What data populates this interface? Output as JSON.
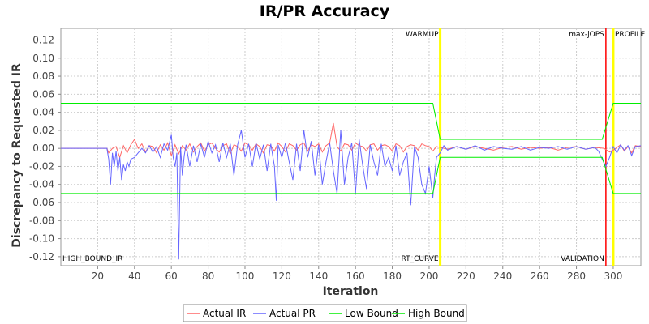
{
  "chart_data": {
    "type": "line",
    "title": "IR/PR Accuracy",
    "xlabel": "Iteration",
    "ylabel": "Discrepancy to Requested IR",
    "xlim": [
      0,
      315
    ],
    "ylim": [
      -0.13,
      0.133
    ],
    "x_ticks": [
      20,
      40,
      60,
      80,
      100,
      120,
      140,
      160,
      180,
      200,
      220,
      240,
      260,
      280,
      300
    ],
    "x_tick_labels": [
      "20",
      "40",
      "60",
      "80",
      "100",
      "120",
      "140",
      "160",
      "180",
      "200",
      "220",
      "240",
      "260",
      "280",
      "300"
    ],
    "y_ticks": [
      0.12,
      0.1,
      0.08,
      0.06,
      0.04,
      0.02,
      0.0,
      -0.02,
      -0.04,
      -0.06,
      -0.08,
      -0.1,
      -0.12
    ],
    "y_tick_labels": [
      "0.12",
      "0.10",
      "0.08",
      "0.06",
      "0.04",
      "0.02",
      "0.00",
      "-0.02",
      "-0.04",
      "-0.06",
      "-0.08",
      "-0.10",
      "-0.12"
    ],
    "grid": true,
    "legend_position": "bottom",
    "markers": [
      {
        "label": "WARMUP",
        "x": 206,
        "color": "#ffff00",
        "label_position": "top"
      },
      {
        "label": "RT_CURVE",
        "x": 206,
        "color": "#ffff00",
        "label_position": "bottom"
      },
      {
        "label": "max-jOPS",
        "x": 296,
        "color": "#ff0000",
        "label_position": "top"
      },
      {
        "label": "VALIDATION",
        "x": 296,
        "color": "#ff0000",
        "label_position": "bottom"
      },
      {
        "label": "PROFILE",
        "x": 300,
        "color": "#ffff00",
        "label_position": "top"
      },
      {
        "label": "HIGH_BOUND_IR",
        "x": 0,
        "color": "#ffff00",
        "label_position": "bottom"
      }
    ],
    "series": [
      {
        "name": "Actual IR",
        "color": "#ff6666",
        "x": [
          0,
          25,
          26,
          28,
          30,
          32,
          34,
          36,
          38,
          40,
          42,
          44,
          46,
          48,
          50,
          52,
          54,
          56,
          58,
          60,
          62,
          64,
          66,
          68,
          70,
          72,
          74,
          76,
          78,
          80,
          82,
          84,
          86,
          88,
          90,
          92,
          94,
          96,
          98,
          100,
          102,
          104,
          106,
          108,
          110,
          112,
          114,
          116,
          118,
          120,
          122,
          124,
          126,
          128,
          130,
          132,
          134,
          136,
          138,
          140,
          142,
          144,
          146,
          148,
          150,
          152,
          154,
          156,
          158,
          160,
          162,
          164,
          166,
          168,
          170,
          172,
          174,
          176,
          178,
          180,
          182,
          184,
          186,
          188,
          190,
          192,
          194,
          196,
          198,
          200,
          202,
          204,
          206,
          208,
          210,
          215,
          220,
          225,
          230,
          235,
          240,
          245,
          250,
          255,
          260,
          265,
          270,
          275,
          280,
          285,
          290,
          295,
          298,
          300,
          302,
          304,
          306,
          308,
          310,
          312,
          315
        ],
        "y": [
          0,
          0,
          -0.005,
          0,
          0.002,
          -0.01,
          0.003,
          -0.005,
          0.004,
          0.01,
          0.0,
          0.005,
          -0.004,
          0.003,
          0.002,
          -0.005,
          0.004,
          -0.002,
          0.006,
          -0.008,
          0.004,
          -0.006,
          0.003,
          -0.002,
          0.005,
          -0.004,
          0.002,
          0.006,
          -0.003,
          0.004,
          0.006,
          0.0,
          -0.004,
          0.003,
          0.005,
          -0.006,
          0.004,
          0.002,
          -0.003,
          0.006,
          0.004,
          -0.002,
          0.005,
          0.002,
          -0.005,
          0.004,
          0.003,
          -0.003,
          0.006,
          0.002,
          -0.004,
          0.005,
          0.003,
          -0.002,
          0.004,
          0.006,
          -0.003,
          0.004,
          0.002,
          0.005,
          -0.004,
          0.003,
          0.006,
          0.028,
          0.002,
          -0.003,
          0.005,
          0.004,
          -0.002,
          0.006,
          0.003,
          0.002,
          -0.003,
          0.004,
          0.005,
          -0.002,
          0.003,
          0.004,
          0.002,
          -0.003,
          0.005,
          0.003,
          -0.004,
          0.002,
          0.004,
          0.003,
          -0.002,
          0.005,
          0.003,
          0.002,
          -0.003,
          0.002,
          0.001,
          0.0,
          -0.001,
          0.002,
          -0.001,
          0.002,
          0.0,
          -0.002,
          0.001,
          0.002,
          -0.001,
          0.001,
          0.0,
          0.001,
          -0.002,
          0.001,
          0.002,
          -0.001,
          0.001,
          0.0,
          -0.004,
          -0.002,
          0.001,
          0.004,
          -0.003,
          0.002,
          -0.005,
          0.003,
          0.002
        ]
      },
      {
        "name": "Actual PR",
        "color": "#6666ff",
        "x": [
          0,
          25,
          26,
          27,
          28,
          29,
          30,
          31,
          32,
          33,
          34,
          35,
          36,
          37,
          38,
          40,
          42,
          44,
          46,
          48,
          50,
          52,
          54,
          56,
          58,
          60,
          61,
          62,
          63,
          64,
          65,
          66,
          67,
          68,
          70,
          72,
          74,
          76,
          78,
          80,
          82,
          84,
          86,
          88,
          90,
          92,
          94,
          96,
          98,
          100,
          102,
          104,
          106,
          108,
          110,
          112,
          114,
          116,
          117,
          118,
          120,
          122,
          124,
          126,
          128,
          130,
          132,
          134,
          136,
          138,
          140,
          142,
          144,
          146,
          148,
          150,
          152,
          154,
          156,
          158,
          160,
          162,
          164,
          166,
          168,
          170,
          172,
          174,
          176,
          178,
          180,
          182,
          184,
          186,
          188,
          190,
          192,
          194,
          196,
          198,
          200,
          202,
          203,
          204,
          206,
          208,
          210,
          215,
          220,
          225,
          230,
          235,
          240,
          245,
          250,
          255,
          260,
          265,
          270,
          275,
          280,
          285,
          290,
          292,
          294,
          296,
          298,
          300,
          302,
          304,
          306,
          308,
          310,
          312,
          315
        ],
        "y": [
          0,
          0,
          -0.012,
          -0.04,
          -0.005,
          -0.02,
          -0.003,
          -0.025,
          -0.01,
          -0.035,
          -0.018,
          -0.025,
          -0.015,
          -0.02,
          -0.012,
          -0.01,
          -0.005,
          0.0,
          -0.005,
          0.003,
          -0.004,
          0.002,
          -0.01,
          0.005,
          -0.002,
          0.015,
          -0.01,
          -0.02,
          -0.005,
          -0.123,
          0.002,
          -0.03,
          -0.008,
          0.004,
          -0.02,
          0.003,
          -0.015,
          0.005,
          -0.01,
          0.008,
          -0.005,
          0.004,
          -0.015,
          0.006,
          -0.01,
          0.005,
          -0.03,
          0.004,
          0.02,
          -0.01,
          0.005,
          -0.02,
          0.006,
          -0.012,
          0.004,
          -0.025,
          0.005,
          -0.02,
          -0.058,
          0.004,
          -0.01,
          0.006,
          -0.015,
          -0.035,
          0.005,
          -0.025,
          0.02,
          -0.01,
          0.008,
          -0.03,
          0.004,
          -0.04,
          -0.015,
          0.006,
          -0.025,
          -0.05,
          0.02,
          -0.04,
          -0.01,
          0.006,
          -0.05,
          0.01,
          -0.02,
          -0.045,
          0.004,
          -0.015,
          -0.03,
          0.005,
          -0.02,
          -0.01,
          -0.025,
          0.003,
          -0.03,
          -0.015,
          -0.005,
          -0.063,
          0.002,
          -0.01,
          -0.04,
          -0.05,
          -0.02,
          -0.055,
          -0.03,
          -0.01,
          -0.005,
          0.003,
          -0.002,
          0.002,
          -0.001,
          0.003,
          -0.002,
          0.002,
          0.0,
          -0.001,
          0.002,
          -0.002,
          0.001,
          0.0,
          0.002,
          -0.001,
          0.002,
          -0.001,
          0.001,
          -0.003,
          -0.012,
          -0.02,
          -0.01,
          0.002,
          -0.005,
          0.004,
          -0.002,
          0.003,
          -0.008,
          0.002,
          0.003
        ]
      },
      {
        "name": "Low Bound",
        "color": "#00ee00",
        "x": [
          0,
          202,
          206,
          208,
          210,
          294,
          300,
          302,
          315
        ],
        "y": [
          -0.05,
          -0.05,
          -0.01,
          -0.01,
          -0.01,
          -0.01,
          -0.05,
          -0.05,
          -0.05
        ]
      },
      {
        "name": "High Bound",
        "color": "#00ee00",
        "x": [
          0,
          202,
          206,
          208,
          210,
          294,
          300,
          302,
          315
        ],
        "y": [
          0.05,
          0.05,
          0.01,
          0.01,
          0.01,
          0.01,
          0.05,
          0.05,
          0.05
        ]
      }
    ]
  }
}
